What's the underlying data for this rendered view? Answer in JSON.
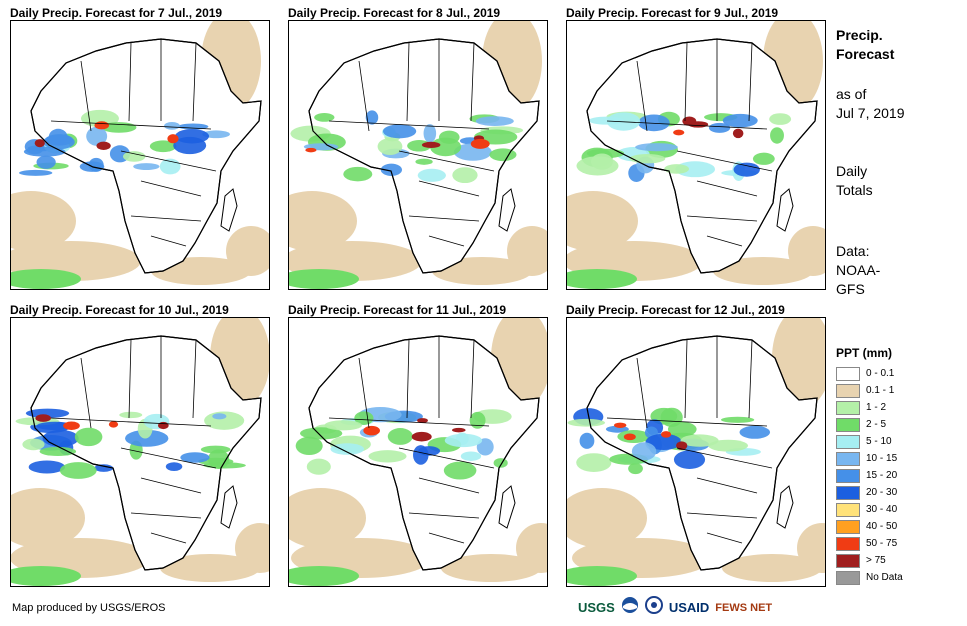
{
  "panels": [
    {
      "title": "Daily Precip. Forecast for 7 Jul., 2019"
    },
    {
      "title": "Daily Precip. Forecast for 8 Jul., 2019"
    },
    {
      "title": "Daily Precip. Forecast for 9 Jul., 2019"
    },
    {
      "title": "Daily Precip. Forecast for 10 Jul., 2019"
    },
    {
      "title": "Daily Precip. Forecast for 11 Jul., 2019"
    },
    {
      "title": "Daily Precip. Forecast for 12 Jul., 2019"
    }
  ],
  "sidebar": {
    "title_line1": "Precip.",
    "title_line2": "Forecast",
    "asof_line1": "as of",
    "asof_line2": "Jul 7, 2019",
    "totals_line1": "Daily",
    "totals_line2": "Totals",
    "data_line1": "Data:",
    "data_line2": "NOAA-",
    "data_line3": "GFS"
  },
  "legend": {
    "title": "PPT (mm)",
    "items": [
      {
        "label": "0 - 0.1",
        "color": "#ffffff"
      },
      {
        "label": "0.1 - 1",
        "color": "#e8d3b0"
      },
      {
        "label": "1 - 2",
        "color": "#b4f0a8"
      },
      {
        "label": "2 - 5",
        "color": "#70dc68"
      },
      {
        "label": "5 - 10",
        "color": "#a6eef2"
      },
      {
        "label": "10 - 15",
        "color": "#78b6f0"
      },
      {
        "label": "15 - 20",
        "color": "#4590e8"
      },
      {
        "label": "20 - 30",
        "color": "#1c5fe0"
      },
      {
        "label": "30 - 40",
        "color": "#ffe27a"
      },
      {
        "label": "40 - 50",
        "color": "#ffa020"
      },
      {
        "label": "50 - 75",
        "color": "#f03c14"
      },
      {
        "label": "> 75",
        "color": "#a01e1e"
      },
      {
        "label": "No Data",
        "color": "#999999"
      }
    ]
  },
  "footer": {
    "credit": "Map produced by USGS/EROS"
  },
  "logos": {
    "usgs": "USGS",
    "usaid": "USAID",
    "fewsnet": "FEWS NET"
  }
}
